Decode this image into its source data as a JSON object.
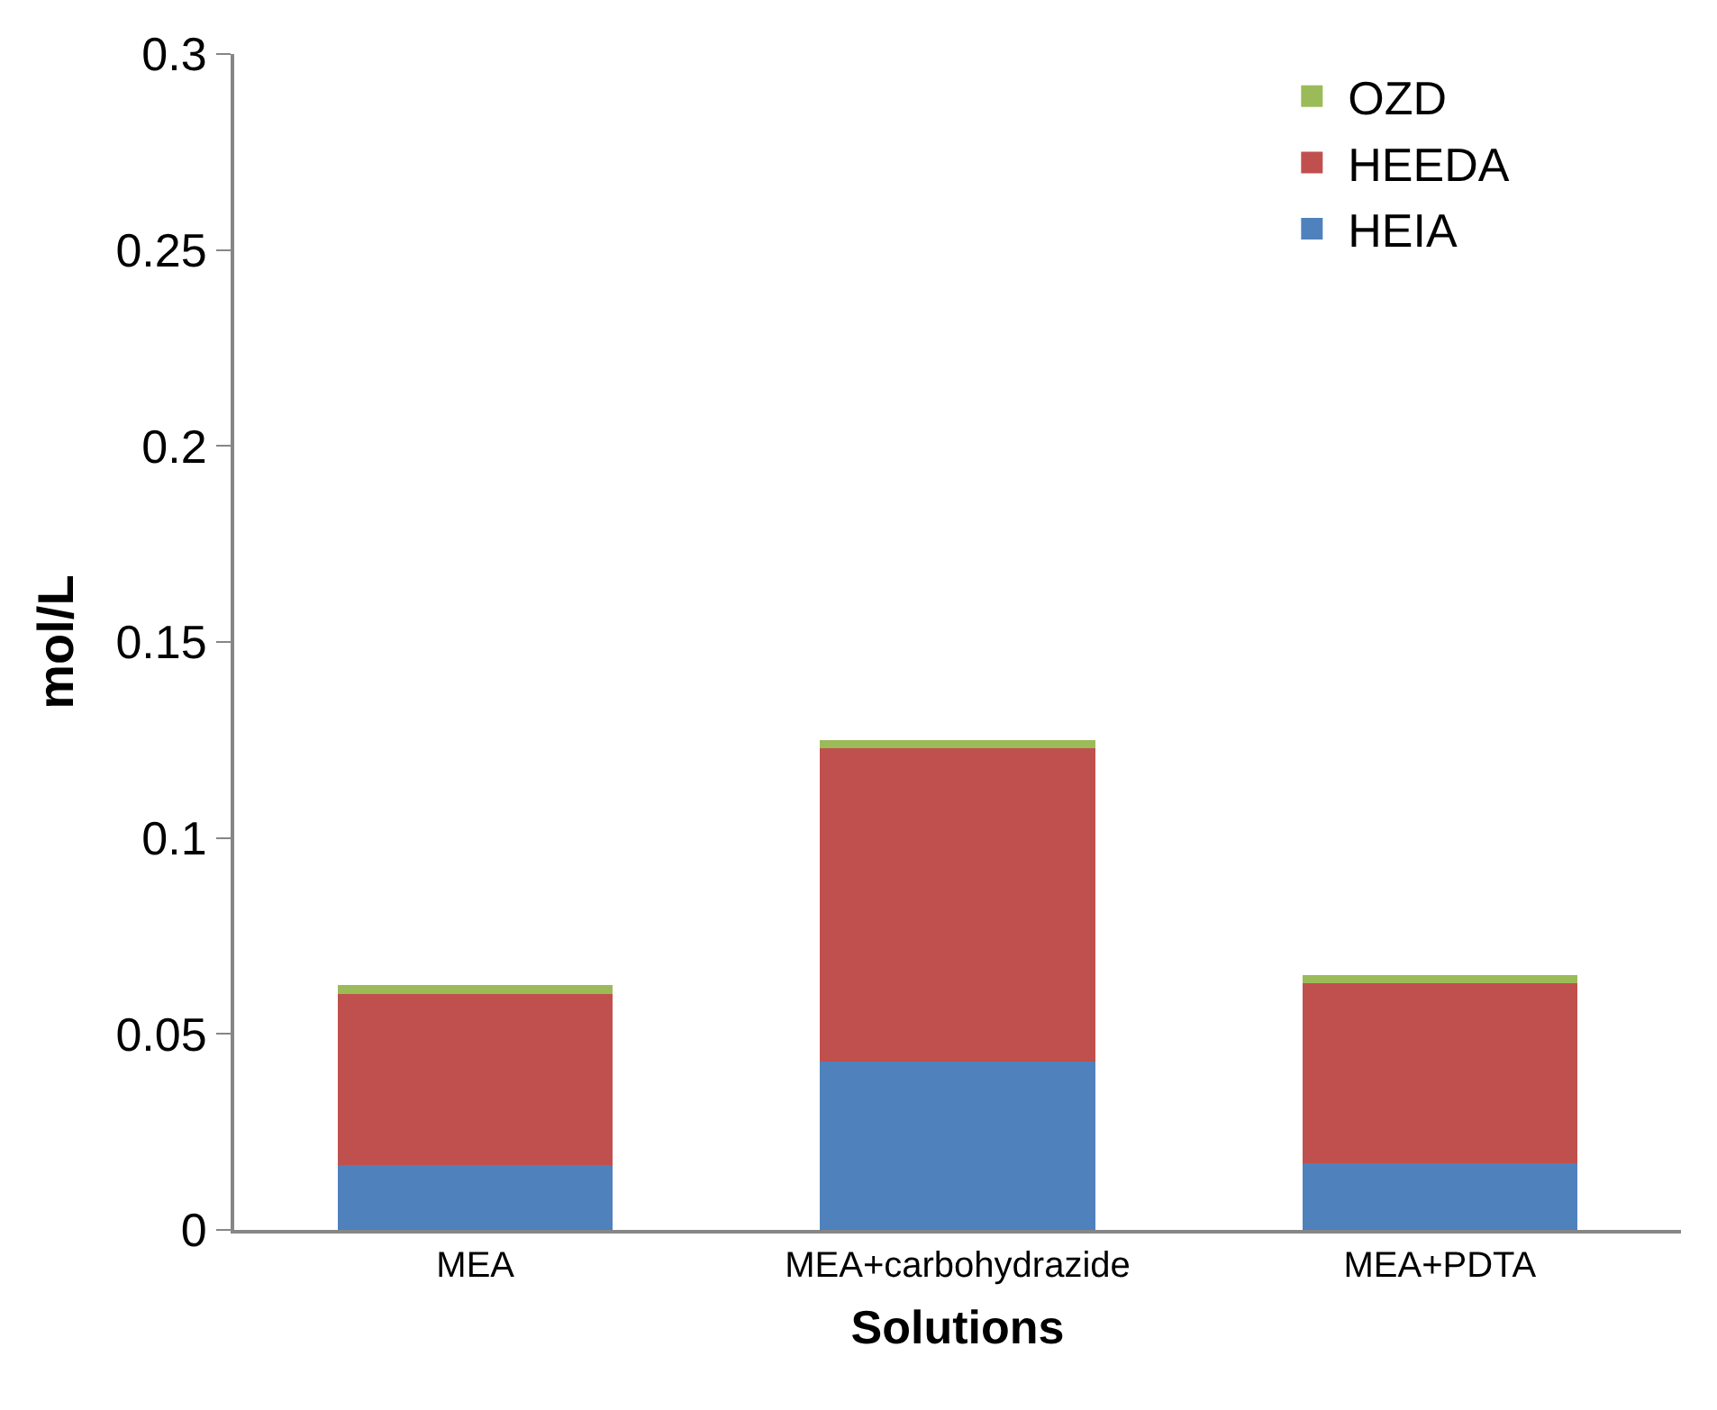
{
  "chart_data": {
    "type": "bar",
    "stacked": true,
    "xlabel": "Solutions",
    "ylabel": "mol/L",
    "categories": [
      "MEA",
      "MEA+carbohydrazide",
      "MEA+PDTA"
    ],
    "series": [
      {
        "name": "HEIA",
        "color": "#4f81bd",
        "values": [
          0.0165,
          0.043,
          0.017
        ]
      },
      {
        "name": "HEEDA",
        "color": "#c0504d",
        "values": [
          0.0437,
          0.08,
          0.046
        ]
      },
      {
        "name": "OZD",
        "color": "#9bbb59",
        "values": [
          0.0023,
          0.002,
          0.002
        ]
      }
    ],
    "ylim": [
      0,
      0.3
    ],
    "yticks": [
      {
        "value": 0,
        "label": "0"
      },
      0.05,
      0.1,
      0.15,
      0.2,
      0.25,
      0.3
    ],
    "legend": "top right"
  }
}
